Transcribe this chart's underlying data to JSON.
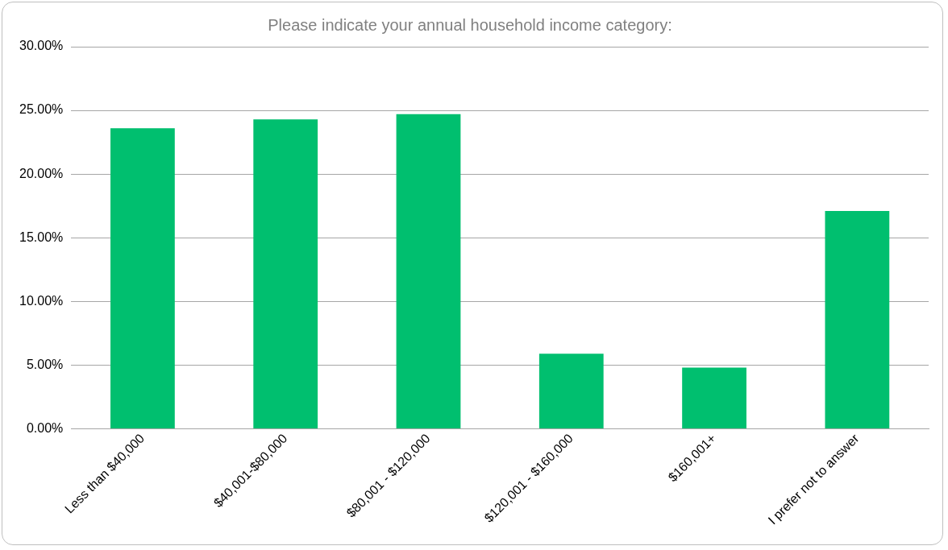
{
  "chart_data": {
    "type": "bar",
    "title": "Please indicate your annual household income category:",
    "categories": [
      "Less than $40,000",
      "$40,001-$80,000",
      "$80,001 - $120,000",
      "$120,001 - $160,000",
      "$160,001+",
      "I prefer not to answer"
    ],
    "values": [
      23.6,
      24.3,
      24.7,
      5.9,
      4.8,
      17.1
    ],
    "color": "#00bf6f",
    "ylim": [
      0,
      30
    ],
    "yticks": [
      {
        "value": 0,
        "label": "0.00%"
      },
      {
        "value": 5,
        "label": "5.00%"
      },
      {
        "value": 10,
        "label": "10.00%"
      },
      {
        "value": 15,
        "label": "15.00%"
      },
      {
        "value": 20,
        "label": "20.00%"
      },
      {
        "value": 25,
        "label": "25.00%"
      },
      {
        "value": 30,
        "label": "30.00%"
      }
    ],
    "grid": "y",
    "legend": false
  }
}
